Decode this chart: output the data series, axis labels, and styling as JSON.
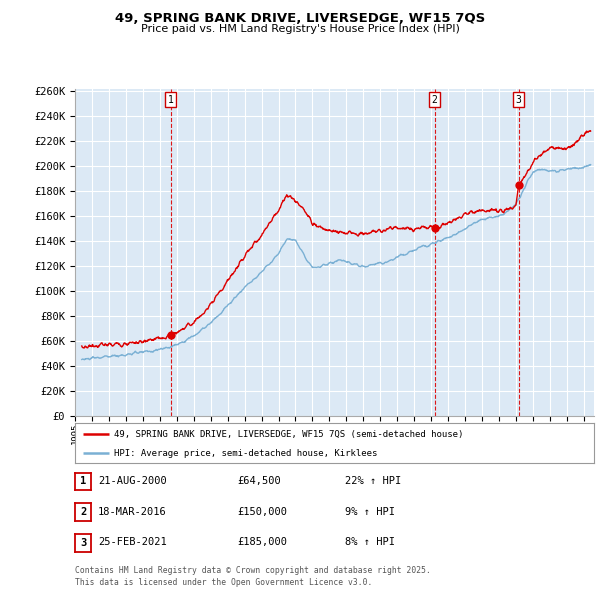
{
  "title": "49, SPRING BANK DRIVE, LIVERSEDGE, WF15 7QS",
  "subtitle": "Price paid vs. HM Land Registry's House Price Index (HPI)",
  "ylim": [
    0,
    260000
  ],
  "yticks": [
    0,
    20000,
    40000,
    60000,
    80000,
    100000,
    120000,
    140000,
    160000,
    180000,
    200000,
    220000,
    240000,
    260000
  ],
  "line_color_red": "#dd0000",
  "line_color_blue": "#7ab0d4",
  "plot_bg": "#dce9f5",
  "grid_color": "#ffffff",
  "vline_color": "#dd0000",
  "sale_dates": [
    2000.64,
    2016.21,
    2021.15
  ],
  "sale_prices": [
    64500,
    150000,
    185000
  ],
  "sale_labels": [
    "1",
    "2",
    "3"
  ],
  "legend_entries": [
    "49, SPRING BANK DRIVE, LIVERSEDGE, WF15 7QS (semi-detached house)",
    "HPI: Average price, semi-detached house, Kirklees"
  ],
  "table_rows": [
    [
      "1",
      "21-AUG-2000",
      "£64,500",
      "22% ↑ HPI"
    ],
    [
      "2",
      "18-MAR-2016",
      "£150,000",
      "9% ↑ HPI"
    ],
    [
      "3",
      "25-FEB-2021",
      "£185,000",
      "8% ↑ HPI"
    ]
  ],
  "footer": "Contains HM Land Registry data © Crown copyright and database right 2025.\nThis data is licensed under the Open Government Licence v3.0.",
  "hpi_anchors_x": [
    1995.4,
    1996.0,
    1997.0,
    1998.0,
    1999.0,
    2000.0,
    2001.0,
    2002.0,
    2003.0,
    2004.0,
    2005.0,
    2006.0,
    2007.0,
    2007.5,
    2008.0,
    2008.5,
    2009.0,
    2009.5,
    2010.0,
    2010.5,
    2011.0,
    2011.5,
    2012.0,
    2012.5,
    2013.0,
    2013.5,
    2014.0,
    2014.5,
    2015.0,
    2015.5,
    2016.0,
    2016.5,
    2017.0,
    2017.5,
    2018.0,
    2018.5,
    2019.0,
    2019.5,
    2020.0,
    2020.5,
    2021.0,
    2021.5,
    2022.0,
    2022.5,
    2023.0,
    2023.5,
    2024.0,
    2024.5,
    2025.3
  ],
  "hpi_anchors_y": [
    45000,
    46000,
    47500,
    49000,
    51000,
    53000,
    57000,
    64000,
    74000,
    88000,
    103000,
    115000,
    130000,
    142000,
    140000,
    130000,
    118000,
    120000,
    122000,
    124000,
    123000,
    121000,
    120000,
    121000,
    122000,
    124000,
    127000,
    130000,
    133000,
    136000,
    138000,
    140000,
    143000,
    146000,
    150000,
    154000,
    157000,
    159000,
    160000,
    163000,
    170000,
    183000,
    195000,
    197000,
    196000,
    196000,
    197000,
    198000,
    200000
  ],
  "prop_anchors_x": [
    1995.4,
    1996.0,
    1997.0,
    1998.0,
    1999.0,
    2000.0,
    2000.64,
    2001.0,
    2002.0,
    2003.0,
    2004.0,
    2005.0,
    2006.0,
    2007.0,
    2007.5,
    2008.0,
    2008.5,
    2009.0,
    2009.5,
    2010.0,
    2010.5,
    2011.0,
    2011.5,
    2012.0,
    2012.5,
    2013.0,
    2013.5,
    2014.0,
    2014.5,
    2015.0,
    2015.5,
    2016.0,
    2016.21,
    2016.5,
    2017.0,
    2017.5,
    2018.0,
    2018.5,
    2019.0,
    2019.5,
    2020.0,
    2020.5,
    2021.0,
    2021.15,
    2021.5,
    2022.0,
    2022.5,
    2023.0,
    2023.5,
    2024.0,
    2024.5,
    2025.3
  ],
  "prop_anchors_y": [
    55000,
    56000,
    57000,
    58000,
    59000,
    62000,
    64500,
    67000,
    75000,
    88000,
    108000,
    128000,
    145000,
    165000,
    177000,
    172000,
    165000,
    155000,
    150000,
    148000,
    147000,
    147000,
    146000,
    145000,
    148000,
    148000,
    150000,
    151000,
    150000,
    150000,
    151000,
    151500,
    150000,
    152000,
    154000,
    157000,
    162000,
    163000,
    164000,
    165000,
    163000,
    165000,
    168000,
    185000,
    192000,
    202000,
    210000,
    215000,
    215000,
    213000,
    218000,
    228000
  ]
}
